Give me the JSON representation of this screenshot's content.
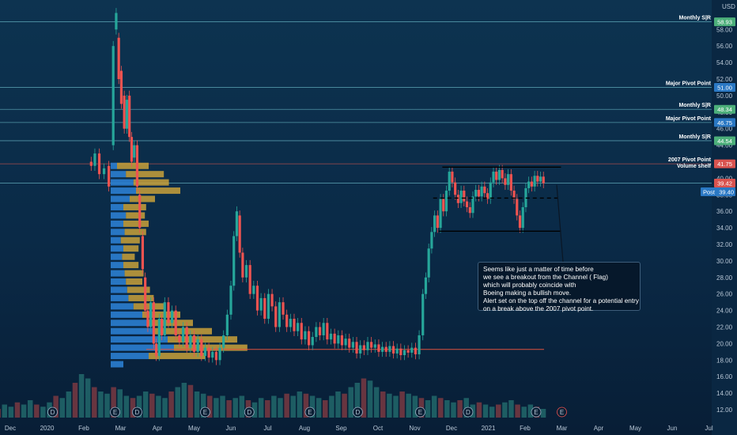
{
  "currency_label": "USD",
  "price_axis": {
    "ticks": [
      {
        "v": 58,
        "label": "58.00"
      },
      {
        "v": 56,
        "label": "56.00"
      },
      {
        "v": 54,
        "label": "54.00"
      },
      {
        "v": 52,
        "label": "52.00"
      },
      {
        "v": 50,
        "label": "50.00"
      },
      {
        "v": 48,
        "label": "48.00"
      },
      {
        "v": 46,
        "label": "46.00"
      },
      {
        "v": 44,
        "label": "44.00"
      },
      {
        "v": 40,
        "label": "40.00"
      },
      {
        "v": 38,
        "label": "38.00"
      },
      {
        "v": 36,
        "label": "36.00"
      },
      {
        "v": 34,
        "label": "34.00"
      },
      {
        "v": 32,
        "label": "32.00"
      },
      {
        "v": 30,
        "label": "30.00"
      },
      {
        "v": 28,
        "label": "28.00"
      },
      {
        "v": 26,
        "label": "26.00"
      },
      {
        "v": 24,
        "label": "24.00"
      },
      {
        "v": 22,
        "label": "22.00"
      },
      {
        "v": 20,
        "label": "20.00"
      },
      {
        "v": 18,
        "label": "18.00"
      },
      {
        "v": 16,
        "label": "16.00"
      },
      {
        "v": 14,
        "label": "14.00"
      },
      {
        "v": 12,
        "label": "12.00"
      }
    ]
  },
  "time_axis": {
    "ticks": [
      {
        "label": "Dec",
        "m": -1
      },
      {
        "label": "2020",
        "m": 0
      },
      {
        "label": "Feb",
        "m": 1
      },
      {
        "label": "Mar",
        "m": 2
      },
      {
        "label": "Apr",
        "m": 3
      },
      {
        "label": "May",
        "m": 4
      },
      {
        "label": "Jun",
        "m": 5
      },
      {
        "label": "Jul",
        "m": 6
      },
      {
        "label": "Aug",
        "m": 7
      },
      {
        "label": "Sep",
        "m": 8
      },
      {
        "label": "Oct",
        "m": 9
      },
      {
        "label": "Nov",
        "m": 10
      },
      {
        "label": "Dec",
        "m": 11
      },
      {
        "label": "2021",
        "m": 12
      },
      {
        "label": "Feb",
        "m": 13
      },
      {
        "label": "Mar",
        "m": 14
      },
      {
        "label": "Apr",
        "m": 15
      },
      {
        "label": "May",
        "m": 16
      },
      {
        "label": "Jun",
        "m": 17
      },
      {
        "label": "Jul",
        "m": 18
      }
    ]
  },
  "levels": [
    {
      "label": "Monthly S|R",
      "price": 58.93,
      "badge": "58.93",
      "line_color": "#5fa8b8",
      "badge_color": "#4caf7a"
    },
    {
      "label": "Major Pivot Point",
      "price": 51.0,
      "badge": "51.00",
      "line_color": "#5fa8b8",
      "badge_color": "#2a78c4"
    },
    {
      "label": "Monthly S|R",
      "price": 48.34,
      "badge": "48.34",
      "line_color": "#5fa8b8",
      "badge_color": "#4caf7a"
    },
    {
      "label": "Major Pivot Point",
      "price": 46.75,
      "badge": "46.75",
      "line_color": "#5fa8b8",
      "badge_color": "#2a78c4"
    },
    {
      "label": "Monthly S|R",
      "price": 44.54,
      "badge": "44.54",
      "line_color": "#5fa8b8",
      "badge_color": "#4caf7a"
    },
    {
      "label": "2007 Pivot Point",
      "price": 41.75,
      "badge": "41.75",
      "line_color": "#c0504d",
      "badge_color": "#d9534f"
    },
    {
      "label": "",
      "price": 39.42,
      "badge": "39.42",
      "line_color": "#5fa8b8",
      "badge_color": "#d9534f"
    }
  ],
  "volume_shelf_label": "Volume shelf",
  "post_badge": {
    "label": "Post",
    "value": "39.40",
    "color": "#2a78c4"
  },
  "support_line_price": 19.3,
  "channel": {
    "top": 41.35,
    "mid": 37.6,
    "bottom": 33.6
  },
  "annotation_lines": [
    "Seems like just a matter of time before",
    "we see a breakout from the Channel ( Flag)",
    "which will probably coincide with",
    "Boeing making a bullish move.",
    "Alert set on the top off the channel for a potential entry",
    "on a break above the 2007 pivot point."
  ],
  "events": [
    {
      "m": 0.15,
      "letter": "D"
    },
    {
      "m": 1.85,
      "letter": "E"
    },
    {
      "m": 2.45,
      "letter": "D"
    },
    {
      "m": 4.3,
      "letter": "E"
    },
    {
      "m": 5.5,
      "letter": "D"
    },
    {
      "m": 7.15,
      "letter": "E"
    },
    {
      "m": 8.45,
      "letter": "D"
    },
    {
      "m": 10.15,
      "letter": "E"
    },
    {
      "m": 11.45,
      "letter": "D"
    },
    {
      "m": 13.3,
      "letter": "E"
    },
    {
      "m": 14.0,
      "letter": "E"
    }
  ],
  "chart_data": {
    "type": "candlestick",
    "ticker_note": "price in USD",
    "ylim": [
      11,
      60
    ],
    "x_unit": "months since Jan 2020",
    "xlim": [
      -1.6,
      18.4
    ],
    "candles": [
      {
        "m": 1.2,
        "o": 42.0,
        "c": 41.5
      },
      {
        "m": 1.3,
        "o": 41.5,
        "c": 43.0
      },
      {
        "m": 1.42,
        "o": 43.0,
        "c": 40.5
      },
      {
        "m": 1.55,
        "o": 40.5,
        "c": 41.2
      },
      {
        "m": 1.68,
        "o": 41.5,
        "c": 39.0
      },
      {
        "m": 1.8,
        "o": 44.0,
        "c": 56.0
      },
      {
        "m": 1.88,
        "o": 58.0,
        "c": 60.0
      },
      {
        "m": 1.95,
        "o": 57.0,
        "c": 52.0
      },
      {
        "m": 2.02,
        "o": 53.0,
        "c": 49.0
      },
      {
        "m": 2.1,
        "o": 50.0,
        "c": 46.0
      },
      {
        "m": 2.17,
        "o": 46.0,
        "c": 49.5
      },
      {
        "m": 2.24,
        "o": 50.0,
        "c": 45.0
      },
      {
        "m": 2.3,
        "o": 45.0,
        "c": 42.0
      },
      {
        "m": 2.37,
        "o": 42.5,
        "c": 44.0
      },
      {
        "m": 2.45,
        "o": 44.0,
        "c": 39.0
      },
      {
        "m": 2.52,
        "o": 38.0,
        "c": 34.0
      },
      {
        "m": 2.6,
        "o": 33.0,
        "c": 29.0
      },
      {
        "m": 2.67,
        "o": 28.0,
        "c": 24.0
      },
      {
        "m": 2.74,
        "o": 24.0,
        "c": 22.0
      },
      {
        "m": 2.82,
        "o": 22.0,
        "c": 25.0
      },
      {
        "m": 2.9,
        "o": 25.0,
        "c": 20.0
      },
      {
        "m": 2.97,
        "o": 20.0,
        "c": 18.5
      },
      {
        "m": 3.05,
        "o": 18.5,
        "c": 23.0
      },
      {
        "m": 3.12,
        "o": 23.0,
        "c": 21.0
      },
      {
        "m": 3.2,
        "o": 21.0,
        "c": 25.0
      },
      {
        "m": 3.3,
        "o": 25.0,
        "c": 22.5
      },
      {
        "m": 3.4,
        "o": 22.5,
        "c": 24.0
      },
      {
        "m": 3.5,
        "o": 24.0,
        "c": 21.0
      },
      {
        "m": 3.6,
        "o": 21.0,
        "c": 20.2
      },
      {
        "m": 3.7,
        "o": 20.2,
        "c": 22.0
      },
      {
        "m": 3.8,
        "o": 22.0,
        "c": 19.5
      },
      {
        "m": 3.9,
        "o": 19.5,
        "c": 21.0
      },
      {
        "m": 4.0,
        "o": 21.0,
        "c": 19.0
      },
      {
        "m": 4.1,
        "o": 19.0,
        "c": 20.5
      },
      {
        "m": 4.2,
        "o": 20.5,
        "c": 18.5
      },
      {
        "m": 4.3,
        "o": 18.5,
        "c": 19.5
      },
      {
        "m": 4.4,
        "o": 19.5,
        "c": 18.3
      },
      {
        "m": 4.5,
        "o": 18.3,
        "c": 19.0
      },
      {
        "m": 4.6,
        "o": 19.0,
        "c": 18.0
      },
      {
        "m": 4.7,
        "o": 18.0,
        "c": 19.5
      },
      {
        "m": 4.8,
        "o": 19.5,
        "c": 21.0
      },
      {
        "m": 4.9,
        "o": 21.0,
        "c": 23.5
      },
      {
        "m": 5.0,
        "o": 23.5,
        "c": 27.0
      },
      {
        "m": 5.08,
        "o": 27.0,
        "c": 33.0
      },
      {
        "m": 5.16,
        "o": 33.0,
        "c": 36.0
      },
      {
        "m": 5.24,
        "o": 35.5,
        "c": 31.0
      },
      {
        "m": 5.32,
        "o": 31.0,
        "c": 28.0
      },
      {
        "m": 5.42,
        "o": 28.0,
        "c": 29.5
      },
      {
        "m": 5.52,
        "o": 29.5,
        "c": 26.0
      },
      {
        "m": 5.62,
        "o": 26.0,
        "c": 27.0
      },
      {
        "m": 5.72,
        "o": 27.0,
        "c": 24.0
      },
      {
        "m": 5.82,
        "o": 24.0,
        "c": 25.5
      },
      {
        "m": 5.92,
        "o": 25.5,
        "c": 23.0
      },
      {
        "m": 6.02,
        "o": 23.0,
        "c": 26.0
      },
      {
        "m": 6.12,
        "o": 26.0,
        "c": 24.5
      },
      {
        "m": 6.22,
        "o": 24.5,
        "c": 22.0
      },
      {
        "m": 6.32,
        "o": 22.0,
        "c": 25.0
      },
      {
        "m": 6.42,
        "o": 25.0,
        "c": 23.5
      },
      {
        "m": 6.52,
        "o": 23.5,
        "c": 22.0
      },
      {
        "m": 6.62,
        "o": 22.0,
        "c": 23.0
      },
      {
        "m": 6.72,
        "o": 23.0,
        "c": 21.5
      },
      {
        "m": 6.82,
        "o": 21.5,
        "c": 22.5
      },
      {
        "m": 6.92,
        "o": 22.5,
        "c": 20.5
      },
      {
        "m": 7.02,
        "o": 20.5,
        "c": 21.5
      },
      {
        "m": 7.12,
        "o": 21.5,
        "c": 19.8
      },
      {
        "m": 7.22,
        "o": 19.8,
        "c": 20.8
      },
      {
        "m": 7.32,
        "o": 20.8,
        "c": 22.0
      },
      {
        "m": 7.42,
        "o": 22.0,
        "c": 21.0
      },
      {
        "m": 7.52,
        "o": 21.0,
        "c": 22.5
      },
      {
        "m": 7.62,
        "o": 22.5,
        "c": 20.5
      },
      {
        "m": 7.72,
        "o": 20.5,
        "c": 21.2
      },
      {
        "m": 7.82,
        "o": 21.2,
        "c": 20.0
      },
      {
        "m": 7.92,
        "o": 20.0,
        "c": 21.0
      },
      {
        "m": 8.02,
        "o": 21.0,
        "c": 19.8
      },
      {
        "m": 8.12,
        "o": 19.8,
        "c": 20.6
      },
      {
        "m": 8.22,
        "o": 20.6,
        "c": 19.5
      },
      {
        "m": 8.32,
        "o": 19.5,
        "c": 20.2
      },
      {
        "m": 8.42,
        "o": 20.2,
        "c": 18.8
      },
      {
        "m": 8.52,
        "o": 18.8,
        "c": 19.8
      },
      {
        "m": 8.62,
        "o": 19.8,
        "c": 19.2
      },
      {
        "m": 8.72,
        "o": 19.2,
        "c": 20.2
      },
      {
        "m": 8.82,
        "o": 20.2,
        "c": 19.5
      },
      {
        "m": 8.92,
        "o": 19.5,
        "c": 19.9
      },
      {
        "m": 9.02,
        "o": 19.9,
        "c": 19.0
      },
      {
        "m": 9.12,
        "o": 19.0,
        "c": 19.6
      },
      {
        "m": 9.22,
        "o": 19.6,
        "c": 19.0
      },
      {
        "m": 9.32,
        "o": 19.0,
        "c": 19.7
      },
      {
        "m": 9.42,
        "o": 19.7,
        "c": 18.8
      },
      {
        "m": 9.52,
        "o": 18.8,
        "c": 19.4
      },
      {
        "m": 9.62,
        "o": 19.4,
        "c": 18.6
      },
      {
        "m": 9.72,
        "o": 18.6,
        "c": 19.2
      },
      {
        "m": 9.82,
        "o": 19.2,
        "c": 18.9
      },
      {
        "m": 9.92,
        "o": 18.9,
        "c": 19.5
      },
      {
        "m": 10.02,
        "o": 19.5,
        "c": 18.7
      },
      {
        "m": 10.12,
        "o": 18.7,
        "c": 21.0
      },
      {
        "m": 10.22,
        "o": 21.0,
        "c": 26.0
      },
      {
        "m": 10.3,
        "o": 26.0,
        "c": 28.0
      },
      {
        "m": 10.38,
        "o": 28.0,
        "c": 31.5
      },
      {
        "m": 10.46,
        "o": 31.5,
        "c": 33.5
      },
      {
        "m": 10.54,
        "o": 33.5,
        "c": 35.5
      },
      {
        "m": 10.62,
        "o": 35.5,
        "c": 34.0
      },
      {
        "m": 10.7,
        "o": 34.0,
        "c": 37.5
      },
      {
        "m": 10.78,
        "o": 37.5,
        "c": 36.0
      },
      {
        "m": 10.86,
        "o": 36.0,
        "c": 38.5
      },
      {
        "m": 10.94,
        "o": 38.5,
        "c": 40.8
      },
      {
        "m": 11.02,
        "o": 40.8,
        "c": 39.5
      },
      {
        "m": 11.1,
        "o": 39.5,
        "c": 38.0
      },
      {
        "m": 11.18,
        "o": 38.0,
        "c": 37.0
      },
      {
        "m": 11.26,
        "o": 37.0,
        "c": 38.5
      },
      {
        "m": 11.34,
        "o": 38.5,
        "c": 37.2
      },
      {
        "m": 11.42,
        "o": 37.2,
        "c": 36.5
      },
      {
        "m": 11.5,
        "o": 36.5,
        "c": 35.8
      },
      {
        "m": 11.58,
        "o": 35.8,
        "c": 37.8
      },
      {
        "m": 11.66,
        "o": 37.8,
        "c": 38.6
      },
      {
        "m": 11.74,
        "o": 38.6,
        "c": 37.8
      },
      {
        "m": 11.82,
        "o": 37.8,
        "c": 39.0
      },
      {
        "m": 11.9,
        "o": 39.0,
        "c": 38.2
      },
      {
        "m": 11.98,
        "o": 38.2,
        "c": 37.5
      },
      {
        "m": 12.06,
        "o": 37.5,
        "c": 39.5
      },
      {
        "m": 12.14,
        "o": 39.5,
        "c": 40.8
      },
      {
        "m": 12.22,
        "o": 40.8,
        "c": 39.8
      },
      {
        "m": 12.3,
        "o": 39.8,
        "c": 41.0
      },
      {
        "m": 12.38,
        "o": 41.0,
        "c": 40.0
      },
      {
        "m": 12.46,
        "o": 40.0,
        "c": 39.2
      },
      {
        "m": 12.54,
        "o": 39.2,
        "c": 40.5
      },
      {
        "m": 12.62,
        "o": 40.5,
        "c": 38.5
      },
      {
        "m": 12.7,
        "o": 38.5,
        "c": 37.5
      },
      {
        "m": 12.78,
        "o": 37.5,
        "c": 35.5
      },
      {
        "m": 12.86,
        "o": 35.5,
        "c": 34.0
      },
      {
        "m": 12.94,
        "o": 34.0,
        "c": 36.5
      },
      {
        "m": 13.02,
        "o": 36.5,
        "c": 38.8
      },
      {
        "m": 13.1,
        "o": 38.8,
        "c": 39.6
      },
      {
        "m": 13.18,
        "o": 39.6,
        "c": 39.0
      },
      {
        "m": 13.26,
        "o": 39.0,
        "c": 40.3
      },
      {
        "m": 13.34,
        "o": 40.3,
        "c": 39.6
      },
      {
        "m": 13.42,
        "o": 39.6,
        "c": 40.2
      },
      {
        "m": 13.5,
        "o": 40.2,
        "c": 39.4
      }
    ],
    "volume_profile": {
      "note": "horizontal volume-at-price histogram along left side; length 0..1 relative",
      "rows": [
        {
          "p": 41.5,
          "blue": 0.05,
          "gold": 0.25
        },
        {
          "p": 40.5,
          "blue": 0.12,
          "gold": 0.3
        },
        {
          "p": 39.5,
          "blue": 0.18,
          "gold": 0.28
        },
        {
          "p": 38.5,
          "blue": 0.2,
          "gold": 0.35
        },
        {
          "p": 37.5,
          "blue": 0.15,
          "gold": 0.2
        },
        {
          "p": 36.5,
          "blue": 0.1,
          "gold": 0.18
        },
        {
          "p": 35.5,
          "blue": 0.12,
          "gold": 0.15
        },
        {
          "p": 34.5,
          "blue": 0.1,
          "gold": 0.2
        },
        {
          "p": 33.5,
          "blue": 0.11,
          "gold": 0.17
        },
        {
          "p": 32.5,
          "blue": 0.08,
          "gold": 0.15
        },
        {
          "p": 31.5,
          "blue": 0.1,
          "gold": 0.12
        },
        {
          "p": 30.5,
          "blue": 0.09,
          "gold": 0.1
        },
        {
          "p": 29.5,
          "blue": 0.1,
          "gold": 0.12
        },
        {
          "p": 28.5,
          "blue": 0.11,
          "gold": 0.15
        },
        {
          "p": 27.5,
          "blue": 0.12,
          "gold": 0.13
        },
        {
          "p": 26.5,
          "blue": 0.13,
          "gold": 0.18
        },
        {
          "p": 25.5,
          "blue": 0.14,
          "gold": 0.2
        },
        {
          "p": 24.5,
          "blue": 0.18,
          "gold": 0.25
        },
        {
          "p": 23.5,
          "blue": 0.25,
          "gold": 0.3
        },
        {
          "p": 22.5,
          "blue": 0.3,
          "gold": 0.35
        },
        {
          "p": 21.5,
          "blue": 0.35,
          "gold": 0.45
        },
        {
          "p": 20.5,
          "blue": 0.45,
          "gold": 0.55
        },
        {
          "p": 19.5,
          "blue": 0.5,
          "gold": 0.58
        },
        {
          "p": 18.5,
          "blue": 0.3,
          "gold": 0.45
        },
        {
          "p": 17.5,
          "blue": 0.1,
          "gold": 0.0
        }
      ]
    },
    "volume_bars_relative": [
      0.2,
      0.3,
      0.25,
      0.35,
      0.3,
      0.4,
      0.3,
      0.25,
      0.35,
      0.5,
      0.45,
      0.6,
      0.8,
      1.0,
      0.9,
      0.7,
      0.6,
      0.55,
      0.7,
      0.65,
      0.5,
      0.45,
      0.5,
      0.6,
      0.55,
      0.5,
      0.45,
      0.6,
      0.7,
      0.8,
      0.75,
      0.6,
      0.55,
      0.5,
      0.45,
      0.5,
      0.4,
      0.45,
      0.5,
      0.4,
      0.35,
      0.45,
      0.4,
      0.5,
      0.45,
      0.55,
      0.5,
      0.6,
      0.55,
      0.5,
      0.45,
      0.4,
      0.5,
      0.6,
      0.55,
      0.7,
      0.8,
      0.9,
      0.85,
      0.7,
      0.6,
      0.55,
      0.5,
      0.6,
      0.55,
      0.5,
      0.45,
      0.4,
      0.5,
      0.45,
      0.4,
      0.35,
      0.4,
      0.45,
      0.3,
      0.35,
      0.3,
      0.25,
      0.3,
      0.35,
      0.4,
      0.3,
      0.25,
      0.3,
      0.25,
      0.2
    ]
  }
}
